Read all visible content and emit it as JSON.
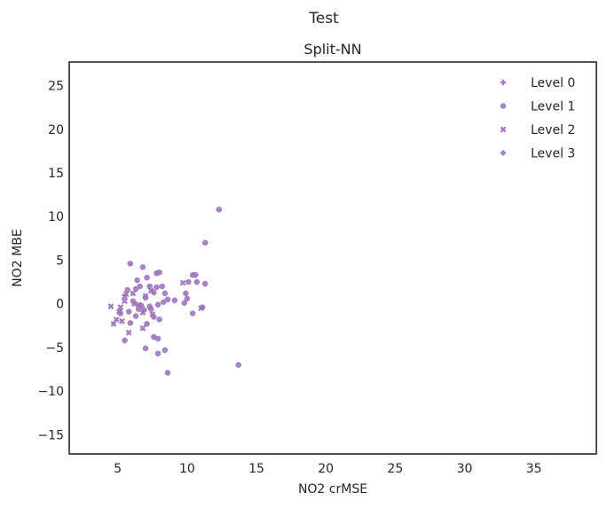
{
  "chart_data": {
    "type": "scatter",
    "suptitle": "Test",
    "title": "Split-NN",
    "xlabel": "NO2 crMSE",
    "ylabel": "NO2 MBE",
    "xlim": [
      1.5,
      39.5
    ],
    "ylim": [
      -17.2,
      27.7
    ],
    "xticks": [
      5,
      10,
      15,
      20,
      25,
      30,
      35
    ],
    "yticks": [
      -15,
      -10,
      -5,
      0,
      5,
      10,
      15,
      20,
      25
    ],
    "grid": false,
    "legend_position": "top-right",
    "color": "#9a6ebb",
    "series": [
      {
        "name": "Level 0",
        "marker": "plus",
        "points": []
      },
      {
        "name": "Level 1",
        "marker": "circle",
        "points": [
          [
            12.3,
            10.8
          ],
          [
            11.3,
            7.0
          ],
          [
            13.7,
            -7.0
          ],
          [
            5.9,
            4.6
          ],
          [
            6.8,
            4.2
          ],
          [
            7.8,
            3.5
          ],
          [
            8.0,
            3.6
          ],
          [
            10.4,
            3.3
          ],
          [
            10.6,
            3.3
          ],
          [
            7.1,
            3.0
          ],
          [
            6.4,
            2.7
          ],
          [
            10.1,
            2.5
          ],
          [
            10.7,
            2.5
          ],
          [
            11.3,
            2.3
          ],
          [
            6.6,
            2.0
          ],
          [
            7.3,
            2.0
          ],
          [
            7.8,
            1.9
          ],
          [
            8.2,
            2.0
          ],
          [
            5.7,
            1.6
          ],
          [
            6.3,
            1.7
          ],
          [
            7.6,
            1.3
          ],
          [
            8.4,
            1.2
          ],
          [
            9.9,
            1.2
          ],
          [
            7.0,
            0.7
          ],
          [
            8.6,
            0.5
          ],
          [
            9.1,
            0.4
          ],
          [
            10.0,
            0.6
          ],
          [
            6.1,
            0.3
          ],
          [
            6.7,
            -0.2
          ],
          [
            7.3,
            -0.3
          ],
          [
            7.9,
            -0.1
          ],
          [
            8.3,
            0.2
          ],
          [
            9.8,
            0.1
          ],
          [
            6.5,
            -0.6
          ],
          [
            6.9,
            -0.7
          ],
          [
            7.4,
            -0.6
          ],
          [
            5.2,
            -1.1
          ],
          [
            5.8,
            -0.9
          ],
          [
            6.3,
            -1.4
          ],
          [
            10.4,
            -1.1
          ],
          [
            11.1,
            -0.4
          ],
          [
            7.6,
            -1.5
          ],
          [
            8.0,
            -1.8
          ],
          [
            5.9,
            -2.2
          ],
          [
            7.1,
            -2.3
          ],
          [
            7.6,
            -3.8
          ],
          [
            7.9,
            -4.0
          ],
          [
            5.5,
            -4.2
          ],
          [
            7.0,
            -5.1
          ],
          [
            8.4,
            -5.3
          ],
          [
            7.9,
            -5.7
          ],
          [
            8.6,
            -7.9
          ]
        ]
      },
      {
        "name": "Level 2",
        "marker": "x",
        "points": [
          [
            4.5,
            -0.3
          ],
          [
            5.2,
            -0.4
          ],
          [
            5.5,
            0.3
          ],
          [
            5.5,
            0.8
          ],
          [
            6.1,
            1.2
          ],
          [
            5.6,
            1.1
          ],
          [
            6.5,
            -0.1
          ],
          [
            7.0,
            0.9
          ],
          [
            7.4,
            1.5
          ],
          [
            9.7,
            2.4
          ],
          [
            11.0,
            -0.5
          ],
          [
            5.1,
            -0.9
          ],
          [
            4.9,
            -1.8
          ],
          [
            4.7,
            -2.3
          ],
          [
            5.3,
            -2.0
          ],
          [
            5.8,
            -3.3
          ],
          [
            6.8,
            -2.8
          ],
          [
            7.5,
            -1.2
          ],
          [
            6.8,
            -1.0
          ],
          [
            6.2,
            0.0
          ]
        ]
      },
      {
        "name": "Level 3",
        "marker": "diamond",
        "points": []
      }
    ]
  }
}
